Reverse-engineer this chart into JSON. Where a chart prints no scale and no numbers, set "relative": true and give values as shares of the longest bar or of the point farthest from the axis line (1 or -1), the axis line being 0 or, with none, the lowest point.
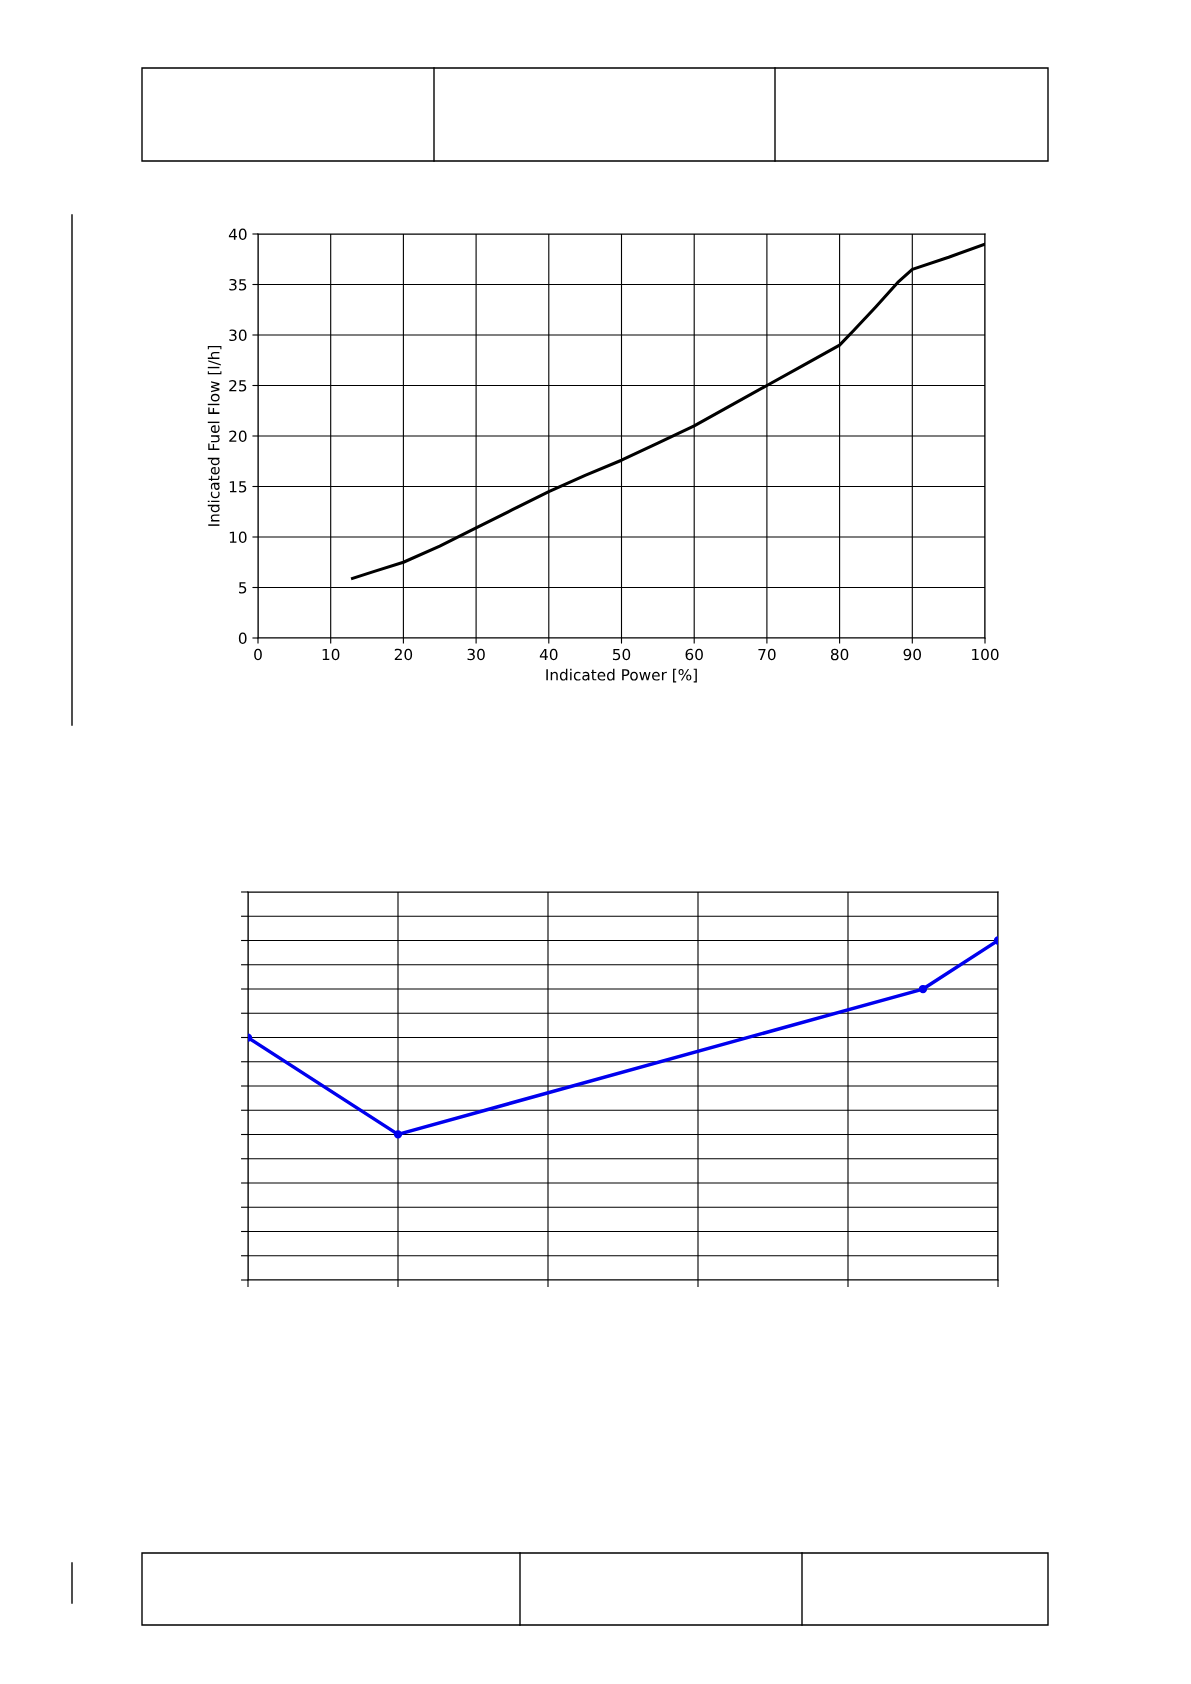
{
  "chart_data": [
    {
      "type": "line",
      "xlabel": "Indicated Power [%]",
      "ylabel": "Indicated Fuel Flow [l/h]",
      "x": [
        13,
        16,
        20,
        25,
        30,
        35,
        40,
        45,
        50,
        55,
        60,
        65,
        70,
        75,
        80,
        82,
        85,
        88,
        90,
        95,
        100
      ],
      "series": [
        {
          "color": "#000000",
          "values": [
            5.9,
            6.6,
            7.5,
            9.1,
            10.9,
            12.7,
            14.5,
            16.1,
            17.6,
            19.3,
            21.0,
            23.0,
            25.0,
            27.0,
            29.0,
            30.5,
            32.8,
            35.2,
            36.5,
            37.7,
            39.0
          ]
        }
      ],
      "xlim": [
        0,
        100
      ],
      "xticks": [
        0,
        10,
        20,
        30,
        40,
        50,
        60,
        70,
        80,
        90,
        100
      ],
      "ylim": [
        0,
        40
      ],
      "yticks": [
        0,
        5,
        10,
        15,
        20,
        25,
        30,
        35,
        40
      ],
      "grid": true,
      "marker": "none",
      "line_style": "solid"
    },
    {
      "type": "line",
      "relative": true,
      "categories": [
        null,
        null,
        null,
        null,
        null,
        null,
        null,
        null,
        null,
        null,
        null
      ],
      "series": [
        {
          "color": "#0000ee",
          "values": [
            0.714,
            null,
            0.429,
            null,
            null,
            null,
            null,
            null,
            null,
            0.857,
            1
          ]
        }
      ],
      "grid": true,
      "marker": "circle",
      "line_style": "solid"
    }
  ]
}
